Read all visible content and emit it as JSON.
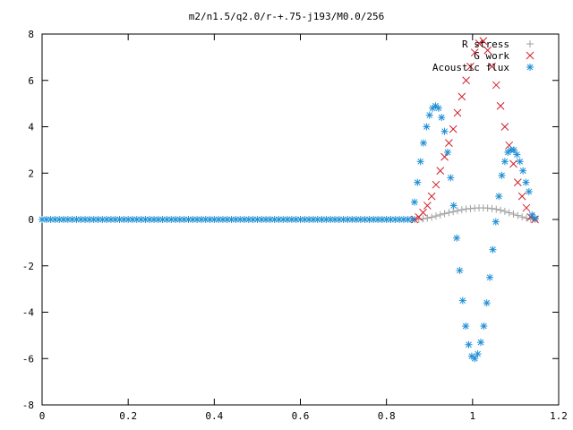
{
  "chart_data": {
    "type": "scatter",
    "title": "m2/n1.5/q2.0/r-+.75-j193/M0.0/256",
    "xlabel": "",
    "ylabel": "",
    "xlim": [
      0,
      1.2
    ],
    "ylim": [
      -8,
      8
    ],
    "x_ticks": [
      "0",
      "0.2",
      "0.4",
      "0.6",
      "0.8",
      "1",
      "1.2"
    ],
    "y_ticks": [
      "-8",
      "-6",
      "-4",
      "-2",
      "0",
      "2",
      "4",
      "6",
      "8"
    ],
    "grid": false,
    "legend_position": "top-right",
    "series": [
      {
        "name": "R stress",
        "marker": "plus",
        "color": "#a0a0a0",
        "points": [
          [
            0.865,
            0.0
          ],
          [
            0.875,
            0.01
          ],
          [
            0.885,
            0.03
          ],
          [
            0.895,
            0.06
          ],
          [
            0.905,
            0.1
          ],
          [
            0.915,
            0.15
          ],
          [
            0.925,
            0.2
          ],
          [
            0.935,
            0.25
          ],
          [
            0.945,
            0.3
          ],
          [
            0.955,
            0.34
          ],
          [
            0.965,
            0.38
          ],
          [
            0.975,
            0.42
          ],
          [
            0.985,
            0.45
          ],
          [
            0.995,
            0.47
          ],
          [
            1.005,
            0.49
          ],
          [
            1.015,
            0.5
          ],
          [
            1.025,
            0.5
          ],
          [
            1.035,
            0.49
          ],
          [
            1.045,
            0.47
          ],
          [
            1.055,
            0.44
          ],
          [
            1.065,
            0.4
          ],
          [
            1.075,
            0.35
          ],
          [
            1.085,
            0.29
          ],
          [
            1.095,
            0.23
          ],
          [
            1.105,
            0.17
          ],
          [
            1.115,
            0.11
          ],
          [
            1.125,
            0.06
          ],
          [
            1.135,
            0.02
          ],
          [
            1.145,
            0.0
          ]
        ]
      },
      {
        "name": "G work",
        "marker": "cross",
        "color": "#d0202a",
        "points": [
          [
            0.865,
            0.0
          ],
          [
            0.875,
            0.1
          ],
          [
            0.885,
            0.3
          ],
          [
            0.895,
            0.6
          ],
          [
            0.905,
            1.0
          ],
          [
            0.915,
            1.5
          ],
          [
            0.925,
            2.1
          ],
          [
            0.935,
            2.7
          ],
          [
            0.945,
            3.3
          ],
          [
            0.955,
            3.9
          ],
          [
            0.965,
            4.6
          ],
          [
            0.975,
            5.3
          ],
          [
            0.985,
            6.0
          ],
          [
            0.995,
            6.6
          ],
          [
            1.005,
            7.2
          ],
          [
            1.015,
            7.6
          ],
          [
            1.025,
            7.7
          ],
          [
            1.035,
            7.3
          ],
          [
            1.045,
            6.6
          ],
          [
            1.055,
            5.8
          ],
          [
            1.065,
            4.9
          ],
          [
            1.075,
            4.0
          ],
          [
            1.085,
            3.2
          ],
          [
            1.095,
            2.4
          ],
          [
            1.105,
            1.6
          ],
          [
            1.115,
            1.0
          ],
          [
            1.125,
            0.5
          ],
          [
            1.135,
            0.1
          ],
          [
            1.145,
            0.0
          ]
        ]
      },
      {
        "name": "Acoustic flux",
        "marker": "star",
        "color": "#1f8fd6",
        "points": [
          [
            0.0,
            0.0
          ],
          [
            0.01,
            0.0
          ],
          [
            0.02,
            0.0
          ],
          [
            0.03,
            0.0
          ],
          [
            0.04,
            0.0
          ],
          [
            0.05,
            0.0
          ],
          [
            0.06,
            0.0
          ],
          [
            0.07,
            0.0
          ],
          [
            0.08,
            0.0
          ],
          [
            0.09,
            0.0
          ],
          [
            0.1,
            0.0
          ],
          [
            0.11,
            0.0
          ],
          [
            0.12,
            0.0
          ],
          [
            0.13,
            0.0
          ],
          [
            0.14,
            0.0
          ],
          [
            0.15,
            0.0
          ],
          [
            0.16,
            0.0
          ],
          [
            0.17,
            0.0
          ],
          [
            0.18,
            0.0
          ],
          [
            0.19,
            0.0
          ],
          [
            0.2,
            0.0
          ],
          [
            0.21,
            0.0
          ],
          [
            0.22,
            0.0
          ],
          [
            0.23,
            0.0
          ],
          [
            0.24,
            0.0
          ],
          [
            0.25,
            0.0
          ],
          [
            0.26,
            0.0
          ],
          [
            0.27,
            0.0
          ],
          [
            0.28,
            0.0
          ],
          [
            0.29,
            0.0
          ],
          [
            0.3,
            0.0
          ],
          [
            0.31,
            0.0
          ],
          [
            0.32,
            0.0
          ],
          [
            0.33,
            0.0
          ],
          [
            0.34,
            0.0
          ],
          [
            0.35,
            0.0
          ],
          [
            0.36,
            0.0
          ],
          [
            0.37,
            0.0
          ],
          [
            0.38,
            0.0
          ],
          [
            0.39,
            0.0
          ],
          [
            0.4,
            0.0
          ],
          [
            0.41,
            0.0
          ],
          [
            0.42,
            0.0
          ],
          [
            0.43,
            0.0
          ],
          [
            0.44,
            0.0
          ],
          [
            0.45,
            0.0
          ],
          [
            0.46,
            0.0
          ],
          [
            0.47,
            0.0
          ],
          [
            0.48,
            0.0
          ],
          [
            0.49,
            0.0
          ],
          [
            0.5,
            0.0
          ],
          [
            0.51,
            0.0
          ],
          [
            0.52,
            0.0
          ],
          [
            0.53,
            0.0
          ],
          [
            0.54,
            0.0
          ],
          [
            0.55,
            0.0
          ],
          [
            0.56,
            0.0
          ],
          [
            0.57,
            0.0
          ],
          [
            0.58,
            0.0
          ],
          [
            0.59,
            0.0
          ],
          [
            0.6,
            0.0
          ],
          [
            0.61,
            0.0
          ],
          [
            0.62,
            0.0
          ],
          [
            0.63,
            0.0
          ],
          [
            0.64,
            0.0
          ],
          [
            0.65,
            0.0
          ],
          [
            0.66,
            0.0
          ],
          [
            0.67,
            0.0
          ],
          [
            0.68,
            0.0
          ],
          [
            0.69,
            0.0
          ],
          [
            0.7,
            0.0
          ],
          [
            0.71,
            0.0
          ],
          [
            0.72,
            0.0
          ],
          [
            0.73,
            0.0
          ],
          [
            0.74,
            0.0
          ],
          [
            0.75,
            0.0
          ],
          [
            0.76,
            0.0
          ],
          [
            0.77,
            0.0
          ],
          [
            0.78,
            0.0
          ],
          [
            0.79,
            0.0
          ],
          [
            0.8,
            0.0
          ],
          [
            0.81,
            0.0
          ],
          [
            0.82,
            0.0
          ],
          [
            0.83,
            0.0
          ],
          [
            0.84,
            0.0
          ],
          [
            0.85,
            0.0
          ],
          [
            0.86,
            0.0
          ],
          [
            0.865,
            0.75
          ],
          [
            0.872,
            1.6
          ],
          [
            0.879,
            2.5
          ],
          [
            0.886,
            3.3
          ],
          [
            0.893,
            4.0
          ],
          [
            0.9,
            4.5
          ],
          [
            0.907,
            4.8
          ],
          [
            0.914,
            4.9
          ],
          [
            0.921,
            4.8
          ],
          [
            0.928,
            4.4
          ],
          [
            0.935,
            3.8
          ],
          [
            0.942,
            2.9
          ],
          [
            0.949,
            1.8
          ],
          [
            0.956,
            0.6
          ],
          [
            0.963,
            -0.8
          ],
          [
            0.97,
            -2.2
          ],
          [
            0.977,
            -3.5
          ],
          [
            0.984,
            -4.6
          ],
          [
            0.991,
            -5.4
          ],
          [
            0.998,
            -5.9
          ],
          [
            1.005,
            -6.0
          ],
          [
            1.012,
            -5.8
          ],
          [
            1.019,
            -5.3
          ],
          [
            1.026,
            -4.6
          ],
          [
            1.033,
            -3.6
          ],
          [
            1.04,
            -2.5
          ],
          [
            1.047,
            -1.3
          ],
          [
            1.054,
            -0.1
          ],
          [
            1.061,
            1.0
          ],
          [
            1.068,
            1.9
          ],
          [
            1.075,
            2.5
          ],
          [
            1.082,
            2.9
          ],
          [
            1.089,
            3.0
          ],
          [
            1.096,
            3.0
          ],
          [
            1.103,
            2.8
          ],
          [
            1.11,
            2.5
          ],
          [
            1.117,
            2.1
          ],
          [
            1.124,
            1.6
          ],
          [
            1.131,
            1.2
          ],
          [
            1.138,
            0.2
          ],
          [
            1.145,
            0.05
          ]
        ]
      }
    ]
  }
}
